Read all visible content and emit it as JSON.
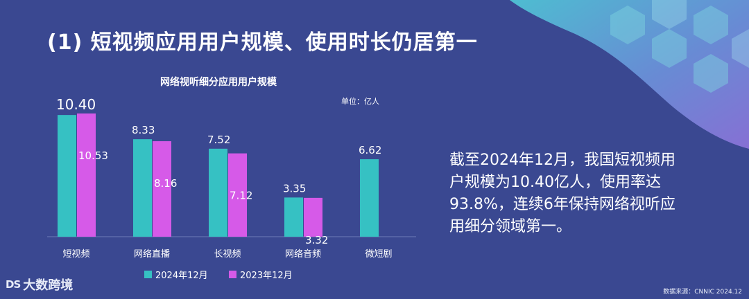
{
  "page": {
    "title": "(1) 短视频应用用户规模、使用时长仍居第一",
    "side_text": "截至2024年12月，我国短视频用户规模为10.40亿人，使用率达93.8%，连续6年保持网络视听应用细分领域第一。",
    "logo_text": "大数跨境",
    "logo_icon_text": "DS",
    "source": "数据来源：CNNIC 2024.12"
  },
  "colors": {
    "background": "#3a4891",
    "series_2024": "#36c1c3",
    "series_2023": "#d65ae8",
    "text": "#ffffff"
  },
  "chart_data": {
    "type": "bar",
    "title": "网络视听细分应用用户规模",
    "unit_label": "单位：亿人",
    "categories": [
      "短视频",
      "网络直播",
      "长视频",
      "网络音频",
      "微短剧"
    ],
    "series": [
      {
        "name": "2024年12月",
        "values": [
          10.4,
          8.33,
          7.52,
          3.35,
          6.62
        ],
        "labels": [
          "10.40",
          "8.33",
          "7.52",
          "3.35",
          "6.62"
        ]
      },
      {
        "name": "2023年12月",
        "values": [
          10.53,
          8.16,
          7.12,
          3.32,
          null
        ],
        "labels": [
          "10.53",
          "8.16",
          "7.12",
          "3.32",
          ""
        ]
      }
    ],
    "ylim": [
      0,
      11
    ],
    "grid": false,
    "legend_position": "bottom"
  }
}
